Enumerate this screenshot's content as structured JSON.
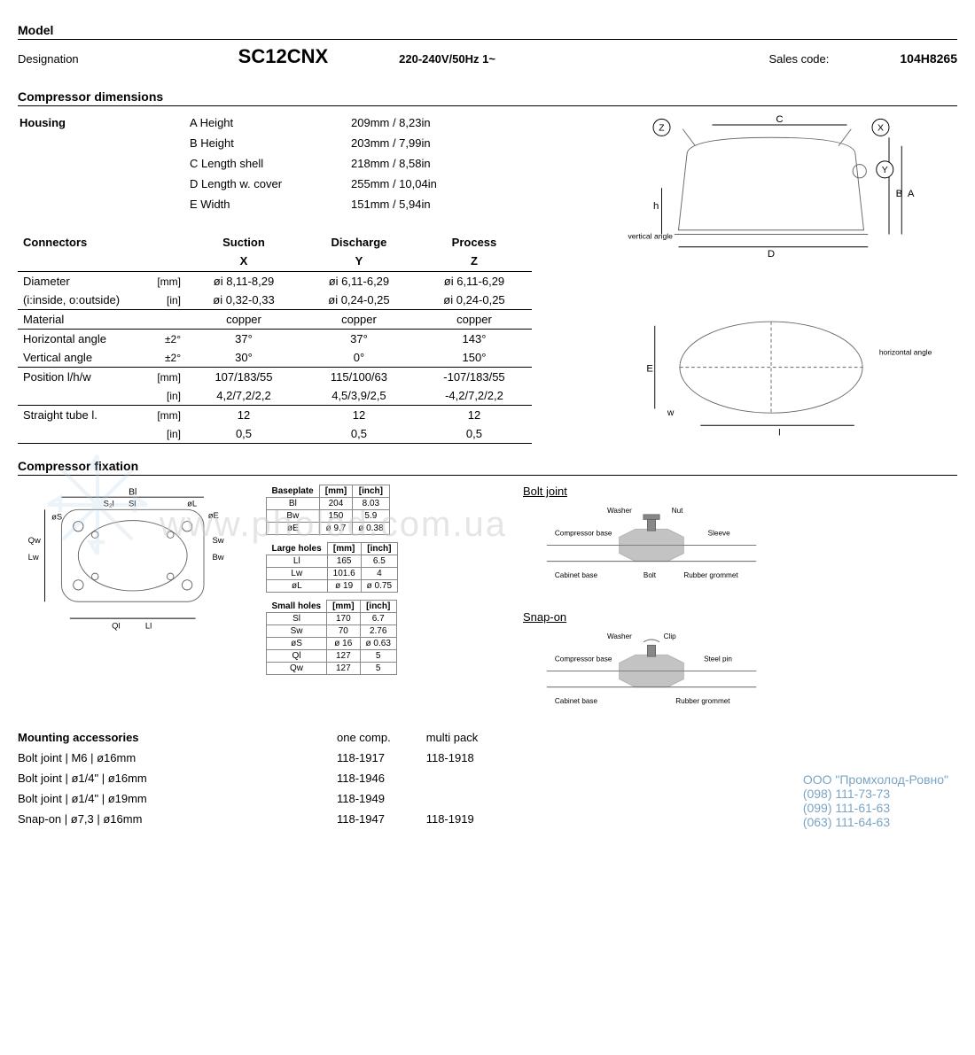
{
  "model": {
    "section": "Model",
    "designation_label": "Designation",
    "name": "SC12CNX",
    "voltage": "220-240V/50Hz 1~",
    "sales_code_label": "Sales code:",
    "sales_code": "104H8265"
  },
  "dimensions": {
    "section": "Compressor dimensions",
    "housing_label": "Housing",
    "housing": [
      {
        "label": "A Height",
        "val": "209mm / 8,23in"
      },
      {
        "label": "B Height",
        "val": "203mm / 7,99in"
      },
      {
        "label": "C Length shell",
        "val": "218mm / 8,58in"
      },
      {
        "label": "D Length w. cover",
        "val": "255mm / 10,04in"
      },
      {
        "label": "E Width",
        "val": "151mm / 5,94in"
      }
    ]
  },
  "connectors": {
    "header": "Connectors",
    "cols": [
      "Suction",
      "Discharge",
      "Process"
    ],
    "col_sub": [
      "X",
      "Y",
      "Z"
    ],
    "rows": [
      {
        "label": "Diameter",
        "unit": "[mm]",
        "x": "øi 8,11-8,29",
        "y": "øi 6,11-6,29",
        "z": "øi 6,11-6,29",
        "sep": false
      },
      {
        "label": "(i:inside, o:outside)",
        "unit": "[in]",
        "x": "øi 0,32-0,33",
        "y": "øi 0,24-0,25",
        "z": "øi 0,24-0,25",
        "sep": true
      },
      {
        "label": "Material",
        "unit": "",
        "x": "copper",
        "y": "copper",
        "z": "copper",
        "sep": true
      },
      {
        "label": "Horizontal angle",
        "unit": "±2°",
        "x": "37°",
        "y": "37°",
        "z": "143°",
        "sep": false
      },
      {
        "label": "Vertical angle",
        "unit": "±2°",
        "x": "30°",
        "y": "0°",
        "z": "150°",
        "sep": true
      },
      {
        "label": "Position l/h/w",
        "unit": "[mm]",
        "x": "107/183/55",
        "y": "115/100/63",
        "z": "-107/183/55",
        "sep": false
      },
      {
        "label": "",
        "unit": "[in]",
        "x": "4,2/7,2/2,2",
        "y": "4,5/3,9/2,5",
        "z": "-4,2/7,2/2,2",
        "sep": true
      },
      {
        "label": "Straight tube l.",
        "unit": "[mm]",
        "x": "12",
        "y": "12",
        "z": "12",
        "sep": false
      },
      {
        "label": "",
        "unit": "[in]",
        "x": "0,5",
        "y": "0,5",
        "z": "0,5",
        "sep": true
      }
    ]
  },
  "fixation": {
    "section": "Compressor fixation",
    "tables": [
      {
        "caption": "Baseplate",
        "u1": "[mm]",
        "u2": "[inch]",
        "rows": [
          [
            "Bl",
            "204",
            "8.03"
          ],
          [
            "Bw",
            "150",
            "5.9"
          ],
          [
            "øE",
            "ø 9.7",
            "ø 0.38"
          ]
        ]
      },
      {
        "caption": "Large holes",
        "u1": "[mm]",
        "u2": "[inch]",
        "rows": [
          [
            "Ll",
            "165",
            "6.5"
          ],
          [
            "Lw",
            "101.6",
            "4"
          ],
          [
            "øL",
            "ø 19",
            "ø 0.75"
          ]
        ]
      },
      {
        "caption": "Small holes",
        "u1": "[mm]",
        "u2": "[inch]",
        "rows": [
          [
            "Sl",
            "170",
            "6.7"
          ],
          [
            "Sw",
            "70",
            "2.76"
          ],
          [
            "øS",
            "ø 16",
            "ø 0.63"
          ],
          [
            "Ql",
            "127",
            "5"
          ],
          [
            "Qw",
            "127",
            "5"
          ]
        ]
      }
    ],
    "bolt_joint": "Bolt joint",
    "snap_on": "Snap-on",
    "bolt_labels": {
      "washer": "Washer",
      "nut": "Nut",
      "compressor_base": "Compressor base",
      "sleeve": "Sleeve",
      "cabinet_base": "Cabinet base",
      "bolt": "Bolt",
      "rubber": "Rubber grommet",
      "clip": "Clip",
      "steel_pin": "Steel pin"
    }
  },
  "mounting": {
    "header": "Mounting accessories",
    "col1": "one comp.",
    "col2": "multi pack",
    "rows": [
      {
        "label": "Bolt joint | M6 | ø16mm",
        "one": "118-1917",
        "multi": "118-1918"
      },
      {
        "label": "Bolt joint | ø1/4\" | ø16mm",
        "one": "118-1946",
        "multi": ""
      },
      {
        "label": "Bolt joint | ø1/4\" | ø19mm",
        "one": "118-1949",
        "multi": ""
      },
      {
        "label": "Snap-on | ø7,3 | ø16mm",
        "one": "118-1947",
        "multi": "118-1919"
      }
    ]
  },
  "diagram_labels": {
    "z": "Z",
    "x": "X",
    "y": "Y",
    "c": "C",
    "b": "B",
    "a": "A",
    "d": "D",
    "e": "E",
    "h": "h",
    "w": "w",
    "l": "l",
    "vertical_angle": "vertical angle",
    "horizontal_angle": "horizontal angle",
    "bl": "Bl",
    "s2l": "S₂l",
    "sl": "Sl",
    "ol": "øL",
    "oe": "øE",
    "os": "øS",
    "qw": "Qw",
    "lw": "Lw",
    "sw": "Sw",
    "bw": "Bw",
    "ql": "Ql",
    "ll": "Ll"
  },
  "watermark": "www.pholod.com.ua",
  "contact": {
    "company": "ООО \"Промхолод-Ровно\"",
    "phones": [
      "(098) 111-73-73",
      "(099) 111-61-63",
      "(063) 111-64-63"
    ]
  },
  "colors": {
    "text": "#000000",
    "border": "#000000",
    "grey": "#888888",
    "watermark": "#cccccc",
    "contact": "#7aa5c5",
    "diagram": "#666666"
  }
}
